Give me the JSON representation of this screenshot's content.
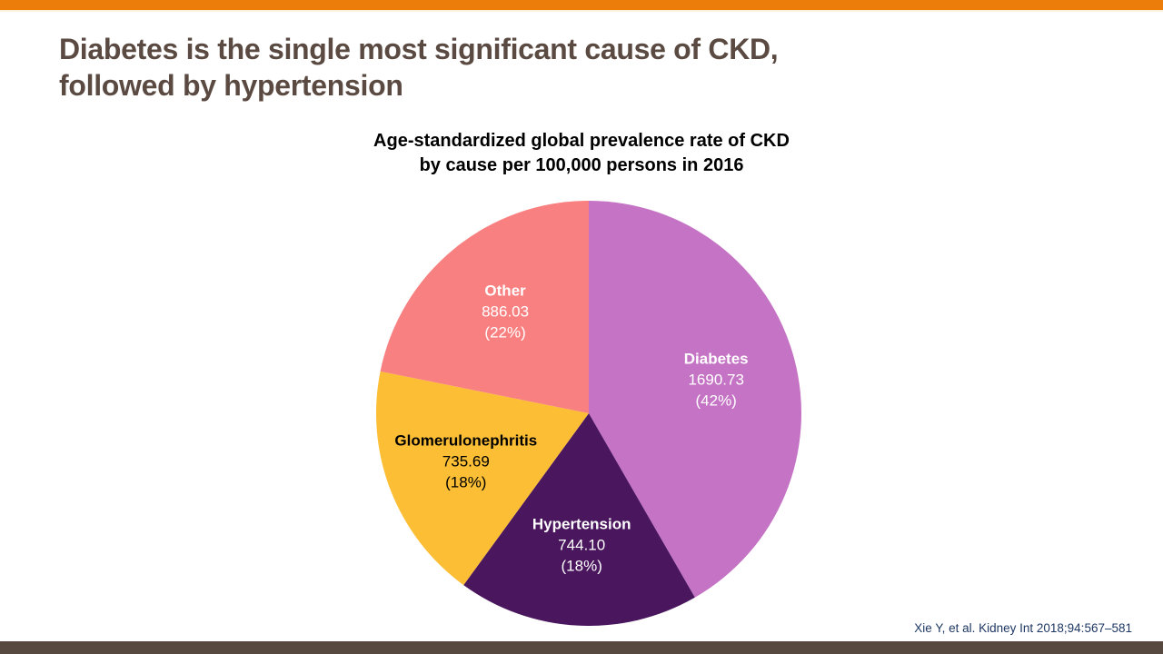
{
  "slide": {
    "title": "Diabetes is the single most significant cause of CKD,\nfollowed by hypertension",
    "citation": "Xie Y, et al. Kidney Int 2018;94:567–581"
  },
  "colors": {
    "top_accent_bar": "#ED7D0B",
    "title_text": "#5A4A42",
    "bottom_bar": "#574840",
    "citation_text": "#1F3864"
  },
  "chart_data": {
    "type": "pie",
    "title": "Age-standardized global prevalence rate of CKD\nby cause per 100,000 persons in 2016",
    "units": "prevalence rate per 100,000 persons",
    "start_angle_deg": 0,
    "direction": "clockwise",
    "legend": "none (labels inside slices)",
    "slices": [
      {
        "label": "Diabetes",
        "value": 1690.73,
        "value_label": "1690.73",
        "pct_label": "(42%)",
        "color": "#C573C4",
        "text_color": "#FFFFFF"
      },
      {
        "label": "Hypertension",
        "value": 744.1,
        "value_label": "744.10",
        "pct_label": "(18%)",
        "color": "#4A165E",
        "text_color": "#FFFFFF"
      },
      {
        "label": "Glomerulonephritis",
        "value": 735.69,
        "value_label": "735.69",
        "pct_label": "(18%)",
        "color": "#FBBE35",
        "text_color": "#000000"
      },
      {
        "label": "Other",
        "value": 886.03,
        "value_label": "886.03",
        "pct_label": "(22%)",
        "color": "#F98080",
        "text_color": "#FFFFFF"
      }
    ]
  }
}
